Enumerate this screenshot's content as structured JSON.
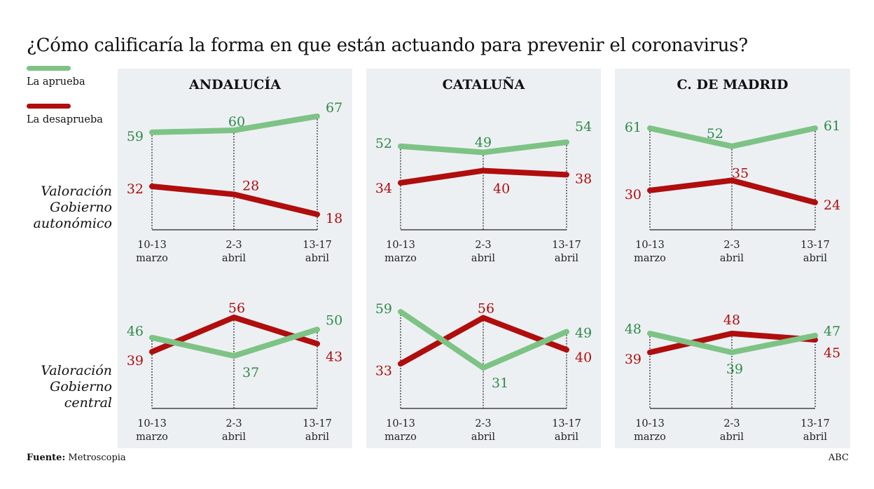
{
  "title": "¿Cómo calificaría la forma en que están actuando para prevenir el coronavirus?",
  "legend": [
    {
      "label": "La aprueba",
      "color": "#7dc385"
    },
    {
      "label": "La desaprueba",
      "color": "#b00d0d"
    }
  ],
  "label_colors": {
    "aprueba": "#2e8a4a",
    "desaprueba": "#b00d0d"
  },
  "row_labels": [
    "Valoración\nGobierno\nautonómico",
    "Valoración\nGobierno\ncentral"
  ],
  "footer": {
    "source_label": "Fuente:",
    "source": "Metroscopia",
    "credit": "ABC"
  },
  "chart_data": {
    "type": "line",
    "x": [
      "10-13 marzo",
      "2-3 abril",
      "13-17 abril"
    ],
    "x_ticks": [
      [
        "10-13",
        "marzo"
      ],
      [
        "2-3",
        "abril"
      ],
      [
        "13-17",
        "abril"
      ]
    ],
    "panels": [
      "ANDALUCÍA",
      "CATALUÑA",
      "C. DE MADRID"
    ],
    "rows": [
      "Valoración Gobierno autonómico",
      "Valoración Gobierno central"
    ],
    "charts": [
      {
        "panel": "ANDALUCÍA",
        "row": "Valoración Gobierno autonómico",
        "series": [
          {
            "name": "La aprueba",
            "values": [
              59,
              60,
              67
            ]
          },
          {
            "name": "La desaprueba",
            "values": [
              32,
              28,
              18
            ]
          }
        ]
      },
      {
        "panel": "CATALUÑA",
        "row": "Valoración Gobierno autonómico",
        "series": [
          {
            "name": "La aprueba",
            "values": [
              52,
              49,
              54
            ]
          },
          {
            "name": "La desaprueba",
            "values": [
              34,
              40,
              38
            ]
          }
        ]
      },
      {
        "panel": "C. DE MADRID",
        "row": "Valoración Gobierno autonómico",
        "series": [
          {
            "name": "La aprueba",
            "values": [
              61,
              52,
              61
            ]
          },
          {
            "name": "La desaprueba",
            "values": [
              30,
              35,
              24
            ]
          }
        ]
      },
      {
        "panel": "ANDALUCÍA",
        "row": "Valoración Gobierno central",
        "series": [
          {
            "name": "La aprueba",
            "values": [
              46,
              37,
              50
            ]
          },
          {
            "name": "La desaprueba",
            "values": [
              39,
              56,
              43
            ]
          }
        ]
      },
      {
        "panel": "CATALUÑA",
        "row": "Valoración Gobierno central",
        "series": [
          {
            "name": "La aprueba",
            "values": [
              59,
              31,
              49
            ]
          },
          {
            "name": "La desaprueba",
            "values": [
              33,
              56,
              40
            ]
          }
        ]
      },
      {
        "panel": "C. DE MADRID",
        "row": "Valoración Gobierno central",
        "series": [
          {
            "name": "La aprueba",
            "values": [
              48,
              39,
              47
            ]
          },
          {
            "name": "La desaprueba",
            "values": [
              39,
              48,
              45
            ]
          }
        ]
      }
    ],
    "xlabel": "",
    "ylabel": "%",
    "grid": false,
    "legend_position": "top-left"
  }
}
